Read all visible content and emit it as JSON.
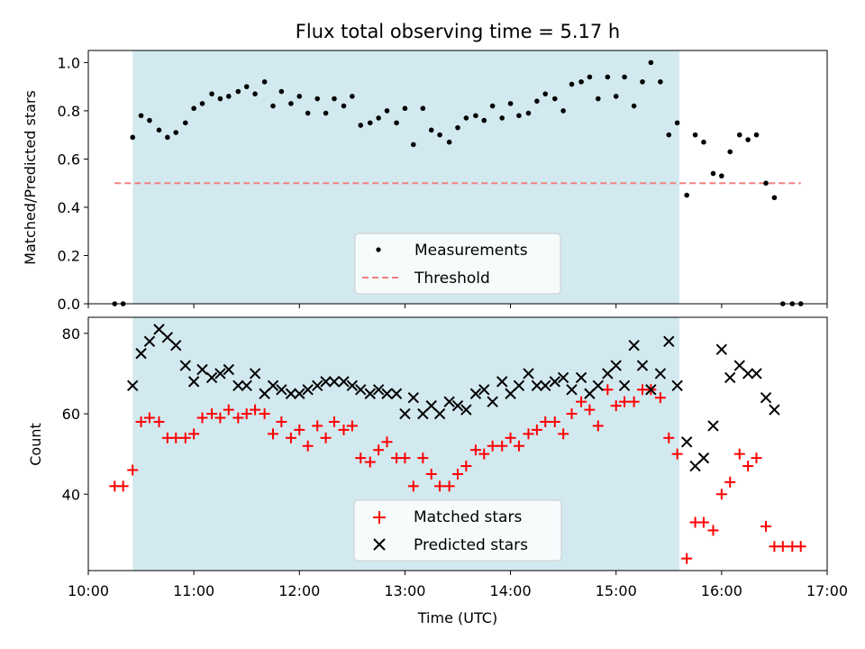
{
  "chart_data": [
    {
      "type": "scatter",
      "title": "Flux total observing time = 5.17 h",
      "xlabel": "",
      "ylabel": "Matched/Predicted stars",
      "xlim": [
        10.0,
        17.0
      ],
      "ylim": [
        0.0,
        1.05
      ],
      "yticks": [
        "0.0",
        "0.2",
        "0.4",
        "0.6",
        "0.8",
        "1.0"
      ],
      "shaded_interval": [
        10.42,
        15.6
      ],
      "shade_color": "#d3e9f0",
      "legend_placement": "lower center",
      "series": [
        {
          "name": "Measurements",
          "marker": "dot",
          "color": "#000000",
          "x": [
            10.25,
            10.33,
            10.42,
            10.5,
            10.58,
            10.67,
            10.75,
            10.83,
            10.92,
            11.0,
            11.08,
            11.17,
            11.25,
            11.33,
            11.42,
            11.5,
            11.58,
            11.67,
            11.75,
            11.83,
            11.92,
            12.0,
            12.08,
            12.17,
            12.25,
            12.33,
            12.42,
            12.5,
            12.58,
            12.67,
            12.75,
            12.83,
            12.92,
            13.0,
            13.08,
            13.17,
            13.25,
            13.33,
            13.42,
            13.5,
            13.58,
            13.67,
            13.75,
            13.83,
            13.92,
            14.0,
            14.08,
            14.17,
            14.25,
            14.33,
            14.42,
            14.5,
            14.58,
            14.67,
            14.75,
            14.83,
            14.92,
            15.0,
            15.08,
            15.17,
            15.25,
            15.33,
            15.42,
            15.5,
            15.58,
            15.67,
            15.75,
            15.83,
            15.92,
            16.0,
            16.08,
            16.17,
            16.25,
            16.33,
            16.42,
            16.5,
            16.58,
            16.67,
            16.75
          ],
          "y": [
            0.0,
            0.0,
            0.69,
            0.78,
            0.76,
            0.72,
            0.69,
            0.71,
            0.75,
            0.81,
            0.83,
            0.87,
            0.85,
            0.86,
            0.88,
            0.9,
            0.87,
            0.92,
            0.82,
            0.88,
            0.83,
            0.86,
            0.79,
            0.85,
            0.79,
            0.85,
            0.82,
            0.86,
            0.74,
            0.75,
            0.77,
            0.8,
            0.75,
            0.81,
            0.66,
            0.81,
            0.72,
            0.7,
            0.67,
            0.73,
            0.77,
            0.78,
            0.76,
            0.82,
            0.77,
            0.83,
            0.78,
            0.79,
            0.84,
            0.87,
            0.85,
            0.8,
            0.91,
            0.92,
            0.94,
            0.85,
            0.94,
            0.86,
            0.94,
            0.82,
            0.92,
            1.0,
            0.92,
            0.7,
            0.75,
            0.45,
            0.7,
            0.67,
            0.54,
            0.53,
            0.63,
            0.7,
            0.68,
            0.7,
            0.5,
            0.44,
            0.0,
            0.0,
            0.0
          ]
        },
        {
          "name": "Threshold",
          "marker": "dashed-line",
          "color": "#f08080",
          "x": [
            10.25,
            16.75
          ],
          "y": [
            0.5,
            0.5
          ]
        }
      ]
    },
    {
      "type": "scatter",
      "title": "",
      "xlabel": "Time (UTC)",
      "ylabel": "Count",
      "xlim": [
        10.0,
        17.0
      ],
      "ylim": [
        21,
        84
      ],
      "yticks": [
        "40",
        "60",
        "80"
      ],
      "xticks": [
        "10:00",
        "11:00",
        "12:00",
        "13:00",
        "14:00",
        "15:00",
        "16:00",
        "17:00"
      ],
      "shaded_interval": [
        10.42,
        15.6
      ],
      "shade_color": "#d3e9f0",
      "legend_placement": "lower center",
      "series": [
        {
          "name": "Matched stars",
          "marker": "plus",
          "color": "#ff0000",
          "x": [
            10.25,
            10.33,
            10.42,
            10.5,
            10.58,
            10.67,
            10.75,
            10.83,
            10.92,
            11.0,
            11.08,
            11.17,
            11.25,
            11.33,
            11.42,
            11.5,
            11.58,
            11.67,
            11.75,
            11.83,
            11.92,
            12.0,
            12.08,
            12.17,
            12.25,
            12.33,
            12.42,
            12.5,
            12.58,
            12.67,
            12.75,
            12.83,
            12.92,
            13.0,
            13.08,
            13.17,
            13.25,
            13.33,
            13.42,
            13.5,
            13.58,
            13.67,
            13.75,
            13.83,
            13.92,
            14.0,
            14.08,
            14.17,
            14.25,
            14.33,
            14.42,
            14.5,
            14.58,
            14.67,
            14.75,
            14.83,
            14.92,
            15.0,
            15.08,
            15.17,
            15.25,
            15.33,
            15.42,
            15.5,
            15.58,
            15.67,
            15.75,
            15.83,
            15.92,
            16.0,
            16.08,
            16.17,
            16.25,
            16.33,
            16.42,
            16.5,
            16.58,
            16.67,
            16.75
          ],
          "y": [
            42,
            42,
            46,
            58,
            59,
            58,
            54,
            54,
            54,
            55,
            59,
            60,
            59,
            61,
            59,
            60,
            61,
            60,
            55,
            58,
            54,
            56,
            52,
            57,
            54,
            58,
            56,
            57,
            49,
            48,
            51,
            53,
            49,
            49,
            42,
            49,
            45,
            42,
            42,
            45,
            47,
            51,
            50,
            52,
            52,
            54,
            52,
            55,
            56,
            58,
            58,
            55,
            60,
            63,
            61,
            57,
            66,
            62,
            63,
            63,
            66,
            66,
            64,
            54,
            50,
            24,
            33,
            33,
            31,
            40,
            43,
            50,
            47,
            49,
            32,
            27,
            27,
            27,
            27
          ]
        },
        {
          "name": "Predicted stars",
          "marker": "x",
          "color": "#000000",
          "x": [
            10.42,
            10.5,
            10.58,
            10.67,
            10.75,
            10.83,
            10.92,
            11.0,
            11.08,
            11.17,
            11.25,
            11.33,
            11.42,
            11.5,
            11.58,
            11.67,
            11.75,
            11.83,
            11.92,
            12.0,
            12.08,
            12.17,
            12.25,
            12.33,
            12.42,
            12.5,
            12.58,
            12.67,
            12.75,
            12.83,
            12.92,
            13.0,
            13.08,
            13.17,
            13.25,
            13.33,
            13.42,
            13.5,
            13.58,
            13.67,
            13.75,
            13.83,
            13.92,
            14.0,
            14.08,
            14.17,
            14.25,
            14.33,
            14.42,
            14.5,
            14.58,
            14.67,
            14.75,
            14.83,
            14.92,
            15.0,
            15.08,
            15.17,
            15.25,
            15.33,
            15.42,
            15.5,
            15.58,
            15.67,
            15.75,
            15.83,
            15.92,
            16.0,
            16.08,
            16.17,
            16.25,
            16.33,
            16.42,
            16.5
          ],
          "y": [
            67,
            75,
            78,
            81,
            79,
            77,
            72,
            68,
            71,
            69,
            70,
            71,
            67,
            67,
            70,
            65,
            67,
            66,
            65,
            65,
            66,
            67,
            68,
            68,
            68,
            67,
            66,
            65,
            66,
            65,
            65,
            60,
            64,
            60,
            62,
            60,
            63,
            62,
            61,
            65,
            66,
            63,
            68,
            65,
            67,
            70,
            67,
            67,
            68,
            69,
            66,
            69,
            65,
            67,
            70,
            72,
            67,
            77,
            72,
            66,
            70,
            78,
            67,
            53,
            47,
            49,
            57,
            76,
            69,
            72,
            70,
            70,
            64,
            61
          ]
        }
      ]
    }
  ]
}
